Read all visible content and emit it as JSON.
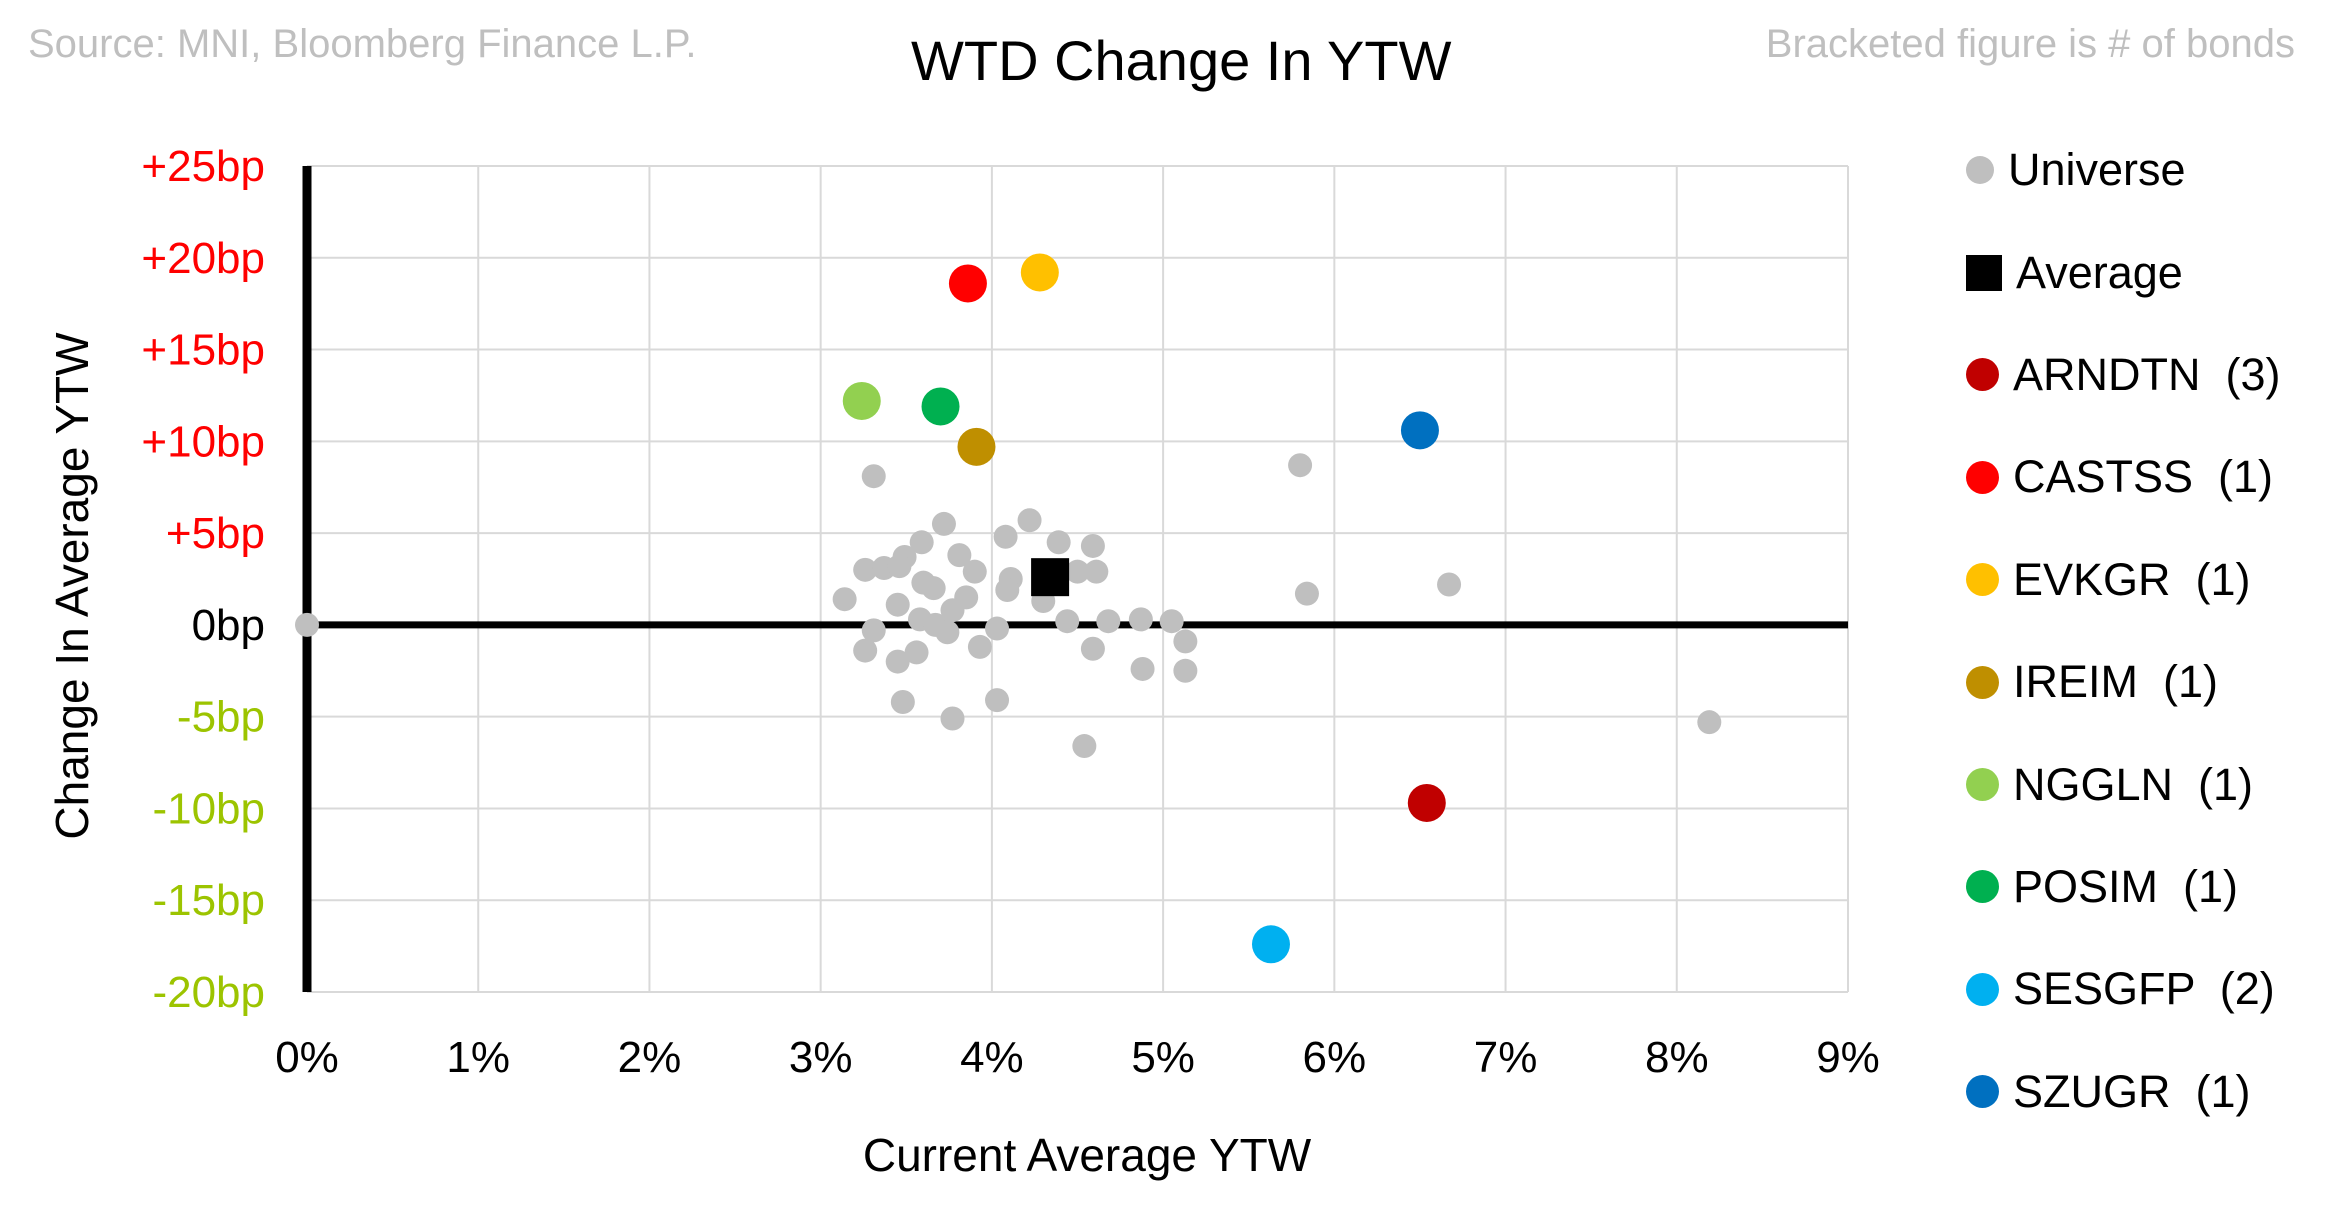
{
  "header": {
    "source_note": "Source: MNI, Bloomberg Finance L.P.",
    "title": "WTD Change In YTW",
    "bracket_note": "Bracketed figure is # of bonds"
  },
  "axes": {
    "x": {
      "title": "Current Average YTW",
      "range": [
        0,
        9
      ],
      "ticks": [
        {
          "label": "0%",
          "value": 0
        },
        {
          "label": "1%",
          "value": 1
        },
        {
          "label": "2%",
          "value": 2
        },
        {
          "label": "3%",
          "value": 3
        },
        {
          "label": "4%",
          "value": 4
        },
        {
          "label": "5%",
          "value": 5
        },
        {
          "label": "6%",
          "value": 6
        },
        {
          "label": "7%",
          "value": 7
        },
        {
          "label": "8%",
          "value": 8
        },
        {
          "label": "9%",
          "value": 9
        }
      ],
      "tick_color": "#000000"
    },
    "y": {
      "title": "Change In Average YTW",
      "range": [
        -20,
        25
      ],
      "ticks": [
        {
          "label": "+25bp",
          "value": 25,
          "color": "#FF0000"
        },
        {
          "label": "+20bp",
          "value": 20,
          "color": "#FF0000"
        },
        {
          "label": "+15bp",
          "value": 15,
          "color": "#FF0000"
        },
        {
          "label": "+10bp",
          "value": 10,
          "color": "#FF0000"
        },
        {
          "label": "+5bp",
          "value": 5,
          "color": "#FF0000"
        },
        {
          "label": "0bp",
          "value": 0,
          "color": "#000000"
        },
        {
          "label": "-5bp",
          "value": -5,
          "color": "#9CC400"
        },
        {
          "label": "-10bp",
          "value": -10,
          "color": "#9CC400"
        },
        {
          "label": "-15bp",
          "value": -15,
          "color": "#9CC400"
        },
        {
          "label": "-20bp",
          "value": -20,
          "color": "#9CC400"
        }
      ]
    },
    "gridline_color": "#D9D9D9",
    "axis_line_color": "#000000"
  },
  "legend": {
    "items": [
      {
        "label": "Universe",
        "color": "#BFBFBF",
        "shape": "circle",
        "size": "small"
      },
      {
        "label": "Average",
        "color": "#000000",
        "shape": "square",
        "size": "large"
      },
      {
        "label": "ARNDTN  (3)",
        "color": "#C00000",
        "shape": "circle",
        "size": "large"
      },
      {
        "label": "CASTSS  (1)",
        "color": "#FF0000",
        "shape": "circle",
        "size": "large"
      },
      {
        "label": "EVKGR  (1)",
        "color": "#FFC000",
        "shape": "circle",
        "size": "large"
      },
      {
        "label": "IREIM  (1)",
        "color": "#BF8F00",
        "shape": "circle",
        "size": "large"
      },
      {
        "label": "NGGLN  (1)",
        "color": "#92D050",
        "shape": "circle",
        "size": "large"
      },
      {
        "label": "POSIM  (1)",
        "color": "#00B050",
        "shape": "circle",
        "size": "large"
      },
      {
        "label": "SESGFP  (2)",
        "color": "#00B0F0",
        "shape": "circle",
        "size": "large"
      },
      {
        "label": "SZUGR  (1)",
        "color": "#0070C0",
        "shape": "circle",
        "size": "large"
      }
    ]
  },
  "chart_data": {
    "type": "scatter",
    "title": "WTD Change In YTW",
    "xlabel": "Current Average YTW",
    "ylabel": "Change In Average YTW",
    "xlim": [
      0,
      9
    ],
    "ylim": [
      -20,
      25
    ],
    "x_unit": "%",
    "y_unit": "bp",
    "grid": true,
    "legend_position": "right",
    "series": [
      {
        "name": "Universe",
        "color": "#BFBFBF",
        "marker": "circle",
        "points": [
          [
            0.0,
            0.0
          ],
          [
            3.31,
            8.1
          ],
          [
            5.8,
            8.7
          ],
          [
            3.72,
            5.5
          ],
          [
            4.22,
            5.7
          ],
          [
            3.59,
            4.5
          ],
          [
            4.08,
            4.8
          ],
          [
            4.39,
            4.5
          ],
          [
            4.59,
            4.3
          ],
          [
            3.81,
            3.8
          ],
          [
            3.49,
            3.7
          ],
          [
            3.26,
            3.0
          ],
          [
            3.37,
            3.1
          ],
          [
            3.46,
            3.2
          ],
          [
            3.9,
            2.9
          ],
          [
            4.5,
            2.9
          ],
          [
            4.61,
            2.9
          ],
          [
            4.11,
            2.5
          ],
          [
            3.6,
            2.3
          ],
          [
            3.66,
            2.0
          ],
          [
            3.14,
            1.4
          ],
          [
            3.45,
            1.1
          ],
          [
            4.09,
            1.9
          ],
          [
            4.3,
            1.3
          ],
          [
            3.85,
            1.5
          ],
          [
            3.77,
            0.8
          ],
          [
            3.58,
            0.3
          ],
          [
            3.67,
            0.0
          ],
          [
            3.74,
            -0.4
          ],
          [
            3.31,
            -0.3
          ],
          [
            4.03,
            -0.2
          ],
          [
            4.44,
            0.2
          ],
          [
            4.68,
            0.2
          ],
          [
            4.87,
            0.3
          ],
          [
            5.05,
            0.2
          ],
          [
            5.84,
            1.7
          ],
          [
            6.67,
            2.2
          ],
          [
            3.26,
            -1.4
          ],
          [
            3.93,
            -1.2
          ],
          [
            4.59,
            -1.3
          ],
          [
            3.45,
            -2.0
          ],
          [
            3.56,
            -1.5
          ],
          [
            4.88,
            -2.4
          ],
          [
            5.13,
            -0.9
          ],
          [
            5.13,
            -2.5
          ],
          [
            3.48,
            -4.2
          ],
          [
            4.03,
            -4.1
          ],
          [
            3.77,
            -5.1
          ],
          [
            4.54,
            -6.6
          ],
          [
            8.19,
            -5.3
          ]
        ]
      },
      {
        "name": "ARNDTN (3)",
        "color": "#C00000",
        "marker": "circle",
        "points": [
          [
            6.54,
            -9.7
          ]
        ]
      },
      {
        "name": "CASTSS (1)",
        "color": "#FF0000",
        "marker": "circle",
        "points": [
          [
            3.86,
            18.6
          ]
        ]
      },
      {
        "name": "EVKGR (1)",
        "color": "#FFC000",
        "marker": "circle",
        "points": [
          [
            4.28,
            19.2
          ]
        ]
      },
      {
        "name": "IREIM (1)",
        "color": "#BF8F00",
        "marker": "circle",
        "points": [
          [
            3.91,
            9.7
          ]
        ]
      },
      {
        "name": "NGGLN (1)",
        "color": "#92D050",
        "marker": "circle",
        "points": [
          [
            3.24,
            12.2
          ]
        ]
      },
      {
        "name": "POSIM (1)",
        "color": "#00B050",
        "marker": "circle",
        "points": [
          [
            3.7,
            11.9
          ]
        ]
      },
      {
        "name": "SESGFP (2)",
        "color": "#00B0F0",
        "marker": "circle",
        "points": [
          [
            5.63,
            -17.4
          ]
        ]
      },
      {
        "name": "SZUGR (1)",
        "color": "#0070C0",
        "marker": "circle",
        "points": [
          [
            6.5,
            10.6
          ]
        ]
      },
      {
        "name": "Average",
        "color": "#000000",
        "marker": "square",
        "points": [
          [
            4.34,
            2.6
          ]
        ]
      }
    ]
  }
}
